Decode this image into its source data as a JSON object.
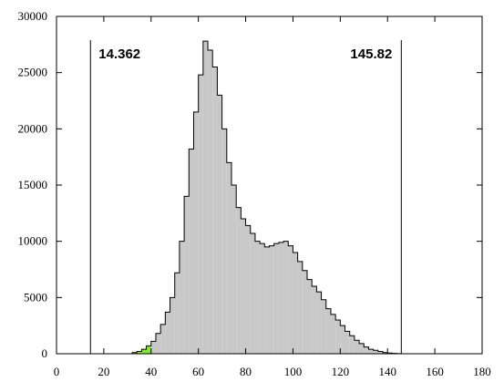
{
  "chart_data": {
    "type": "bar",
    "xlim": [
      0,
      180
    ],
    "ylim": [
      0,
      30000
    ],
    "xticks": [
      0,
      20,
      40,
      60,
      80,
      100,
      120,
      140,
      160,
      180
    ],
    "yticks": [
      0,
      5000,
      10000,
      15000,
      20000,
      25000,
      30000
    ],
    "grid": false,
    "bin_width": 2,
    "bin_start": 20,
    "values": [
      0,
      0,
      0,
      0,
      0,
      0,
      100,
      200,
      400,
      700,
      1100,
      1800,
      2600,
      3700,
      5000,
      7200,
      10000,
      14000,
      18200,
      21500,
      24800,
      27800,
      27000,
      25500,
      23000,
      20000,
      17000,
      15000,
      13000,
      12000,
      11400,
      10700,
      10000,
      9800,
      9500,
      9600,
      9800,
      9900,
      10000,
      9600,
      9000,
      8200,
      7400,
      6600,
      6000,
      5500,
      4800,
      4000,
      3500,
      3000,
      2500,
      2000,
      1600,
      1200,
      900,
      600,
      400,
      300,
      200,
      100,
      60,
      30,
      10,
      0,
      0
    ],
    "highlight_range": [
      30,
      40
    ],
    "highlight_color": "#80ee30",
    "bar_color": "#c8c8c8",
    "markers": [
      {
        "value": 14.362,
        "label": "14.362",
        "label_position": "right"
      },
      {
        "value": 145.82,
        "label": "145.82",
        "label_position": "left"
      }
    ]
  }
}
